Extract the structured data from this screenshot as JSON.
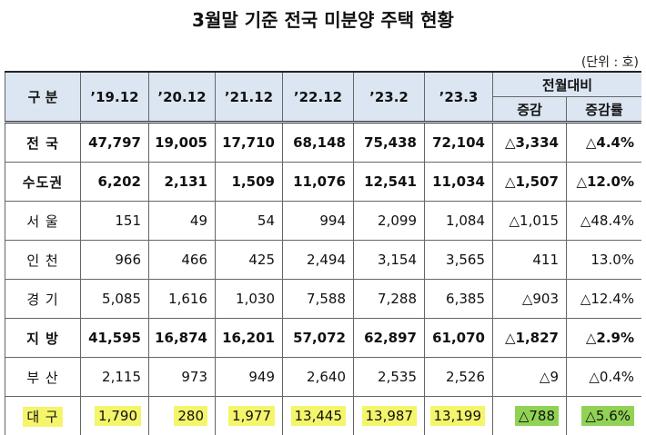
{
  "header": {
    "title": "3월말 기준 전국 미분양 주택 현황",
    "unit": "(단위 : 호)"
  },
  "table": {
    "columns": [
      "구 분",
      "’19.12",
      "’20.12",
      "’21.12",
      "’22.12",
      "’23.2",
      "’23.3"
    ],
    "group": {
      "label": "전월대비",
      "columns": [
        "증감",
        "증감률"
      ]
    },
    "rows": [
      {
        "label": "전 국",
        "bold": true,
        "values": [
          "47,797",
          "19,005",
          "17,710",
          "68,148",
          "75,438",
          "72,104",
          "△3,334",
          "△4.4%"
        ]
      },
      {
        "label": "수도권",
        "bold": true,
        "values": [
          "6,202",
          "2,131",
          "1,509",
          "11,076",
          "12,541",
          "11,034",
          "△1,507",
          "△12.0%"
        ]
      },
      {
        "label": "서 울",
        "values": [
          "151",
          "49",
          "54",
          "994",
          "2,099",
          "1,084",
          "△1,015",
          "△48.4%"
        ]
      },
      {
        "label": "인 천",
        "values": [
          "966",
          "466",
          "425",
          "2,494",
          "3,154",
          "3,565",
          "411",
          "13.0%"
        ]
      },
      {
        "label": "경 기",
        "values": [
          "5,085",
          "1,616",
          "1,030",
          "7,588",
          "7,288",
          "6,385",
          "△903",
          "△12.4%"
        ]
      },
      {
        "label": "지 방",
        "bold": true,
        "values": [
          "41,595",
          "16,874",
          "16,201",
          "57,072",
          "62,897",
          "61,070",
          "△1,827",
          "△2.9%"
        ]
      },
      {
        "label": "부 산",
        "values": [
          "2,115",
          "973",
          "949",
          "2,640",
          "2,535",
          "2,526",
          "△9",
          "△0.4%"
        ]
      },
      {
        "label": "대 구",
        "highlight": true,
        "values": [
          "1,790",
          "280",
          "1,977",
          "13,445",
          "13,987",
          "13,199",
          "△788",
          "△5.6%"
        ]
      }
    ]
  }
}
